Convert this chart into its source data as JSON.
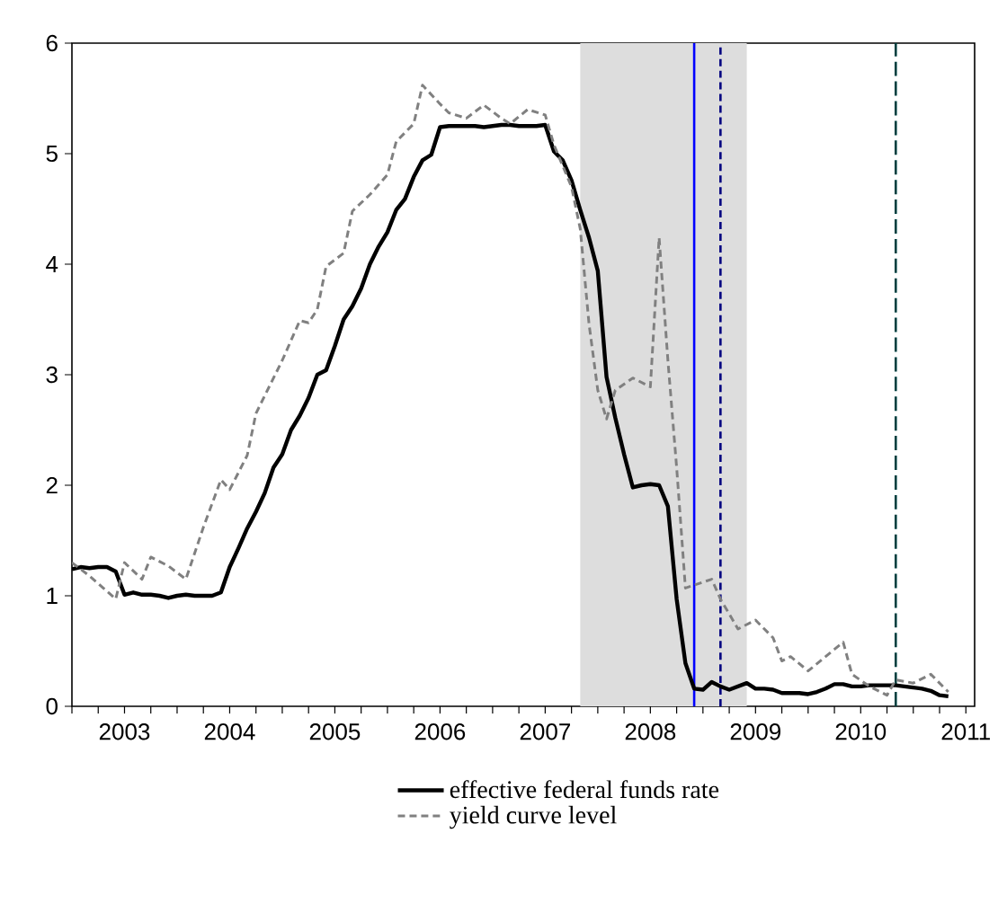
{
  "chart_data": {
    "type": "line",
    "series": [
      {
        "name": "effective federal funds rate",
        "color": "#000000",
        "line_style": "solid",
        "x": [
          "2003-01",
          "2003-02",
          "2003-03",
          "2003-04",
          "2003-05",
          "2003-06",
          "2003-07",
          "2003-08",
          "2003-09",
          "2003-10",
          "2003-11",
          "2003-12",
          "2004-01",
          "2004-02",
          "2004-03",
          "2004-04",
          "2004-05",
          "2004-06",
          "2004-07",
          "2004-08",
          "2004-09",
          "2004-10",
          "2004-11",
          "2004-12",
          "2005-01",
          "2005-02",
          "2005-03",
          "2005-04",
          "2005-05",
          "2005-06",
          "2005-07",
          "2005-08",
          "2005-09",
          "2005-10",
          "2005-11",
          "2005-12",
          "2006-01",
          "2006-02",
          "2006-03",
          "2006-04",
          "2006-05",
          "2006-06",
          "2006-07",
          "2006-08",
          "2006-09",
          "2006-10",
          "2006-11",
          "2006-12",
          "2007-01",
          "2007-02",
          "2007-03",
          "2007-04",
          "2007-05",
          "2007-06",
          "2007-07",
          "2007-08",
          "2007-09",
          "2007-10",
          "2007-11",
          "2007-12",
          "2008-01",
          "2008-02",
          "2008-03",
          "2008-04",
          "2008-05",
          "2008-06",
          "2008-07",
          "2008-08",
          "2008-09",
          "2008-10",
          "2008-11",
          "2008-12",
          "2009-01",
          "2009-02",
          "2009-03",
          "2009-04",
          "2009-05",
          "2009-06",
          "2009-07",
          "2009-08",
          "2009-09",
          "2009-10",
          "2009-11",
          "2009-12",
          "2010-01",
          "2010-02",
          "2010-03",
          "2010-04",
          "2010-05",
          "2010-06",
          "2010-07",
          "2010-08",
          "2010-09",
          "2010-10",
          "2010-11",
          "2010-12",
          "2011-01",
          "2011-02",
          "2011-03",
          "2011-04",
          "2011-05"
        ],
        "values": [
          1.24,
          1.26,
          1.25,
          1.26,
          1.26,
          1.22,
          1.01,
          1.03,
          1.01,
          1.01,
          1.0,
          0.98,
          1.0,
          1.01,
          1.0,
          1.0,
          1.0,
          1.03,
          1.26,
          1.43,
          1.61,
          1.76,
          1.93,
          2.16,
          2.28,
          2.5,
          2.63,
          2.79,
          3.0,
          3.04,
          3.26,
          3.5,
          3.62,
          3.78,
          4.0,
          4.16,
          4.29,
          4.49,
          4.59,
          4.79,
          4.94,
          4.99,
          5.24,
          5.25,
          5.25,
          5.25,
          5.25,
          5.24,
          5.25,
          5.26,
          5.26,
          5.25,
          5.25,
          5.25,
          5.26,
          5.02,
          4.94,
          4.76,
          4.49,
          4.24,
          3.94,
          2.98,
          2.61,
          2.28,
          1.98,
          2.0,
          2.01,
          2.0,
          1.81,
          0.97,
          0.39,
          0.16,
          0.15,
          0.22,
          0.18,
          0.15,
          0.18,
          0.21,
          0.16,
          0.16,
          0.15,
          0.12,
          0.12,
          0.12,
          0.11,
          0.13,
          0.16,
          0.2,
          0.2,
          0.18,
          0.18,
          0.19,
          0.19,
          0.19,
          0.19,
          0.18,
          0.17,
          0.16,
          0.14,
          0.1,
          0.09
        ]
      },
      {
        "name": "yield curve level",
        "color": "#808080",
        "line_style": "dashed",
        "x": [
          "2003-01",
          "2003-03",
          "2003-06",
          "2003-07",
          "2003-09",
          "2003-10",
          "2003-12",
          "2004-02",
          "2004-04",
          "2004-06",
          "2004-07",
          "2004-09",
          "2004-10",
          "2005-01",
          "2005-03",
          "2005-04",
          "2005-05",
          "2005-06",
          "2005-08",
          "2005-09",
          "2005-11",
          "2006-01",
          "2006-02",
          "2006-04",
          "2006-05",
          "2006-07",
          "2006-08",
          "2006-10",
          "2006-12",
          "2007-02",
          "2007-03",
          "2007-05",
          "2007-07",
          "2007-08",
          "2007-10",
          "2007-11",
          "2007-12",
          "2008-01",
          "2008-02",
          "2008-03",
          "2008-05",
          "2008-07",
          "2008-08",
          "2008-09",
          "2008-10",
          "2008-11",
          "2009-02",
          "2009-03",
          "2009-05",
          "2009-07",
          "2009-09",
          "2009-10",
          "2009-11",
          "2010-01",
          "2010-03",
          "2010-05",
          "2010-06",
          "2010-08",
          "2010-10",
          "2010-11",
          "2011-01",
          "2011-03",
          "2011-05"
        ],
        "values": [
          1.3,
          1.18,
          0.97,
          1.3,
          1.15,
          1.35,
          1.27,
          1.15,
          1.62,
          2.05,
          1.96,
          2.27,
          2.65,
          3.13,
          3.49,
          3.47,
          3.59,
          3.98,
          4.1,
          4.48,
          4.63,
          4.81,
          5.11,
          5.27,
          5.62,
          5.45,
          5.37,
          5.32,
          5.44,
          5.32,
          5.27,
          5.4,
          5.35,
          5.08,
          4.7,
          4.32,
          3.46,
          2.86,
          2.6,
          2.86,
          2.97,
          2.89,
          4.24,
          3.13,
          2.16,
          1.07,
          1.15,
          0.97,
          0.7,
          0.78,
          0.62,
          0.41,
          0.45,
          0.32,
          0.45,
          0.58,
          0.29,
          0.18,
          0.1,
          0.24,
          0.21,
          0.29,
          0.13
        ]
      }
    ],
    "xlim": [
      "2003-01",
      "2011-08"
    ],
    "xticks": [
      {
        "value": "2003-01",
        "label": null
      },
      {
        "value": "2003-04",
        "label": null
      },
      {
        "value": "2003-07",
        "label": "2003"
      },
      {
        "value": "2003-10",
        "label": null
      },
      {
        "value": "2004-01",
        "label": null
      },
      {
        "value": "2004-04",
        "label": null
      },
      {
        "value": "2004-07",
        "label": "2004"
      },
      {
        "value": "2004-10",
        "label": null
      },
      {
        "value": "2005-01",
        "label": null
      },
      {
        "value": "2005-04",
        "label": null
      },
      {
        "value": "2005-07",
        "label": "2005"
      },
      {
        "value": "2005-10",
        "label": null
      },
      {
        "value": "2006-01",
        "label": null
      },
      {
        "value": "2006-04",
        "label": null
      },
      {
        "value": "2006-07",
        "label": "2006"
      },
      {
        "value": "2006-10",
        "label": null
      },
      {
        "value": "2007-01",
        "label": null
      },
      {
        "value": "2007-04",
        "label": null
      },
      {
        "value": "2007-07",
        "label": "2007"
      },
      {
        "value": "2007-10",
        "label": null
      },
      {
        "value": "2008-01",
        "label": null
      },
      {
        "value": "2008-04",
        "label": null
      },
      {
        "value": "2008-07",
        "label": "2008"
      },
      {
        "value": "2008-10",
        "label": null
      },
      {
        "value": "2009-01",
        "label": null
      },
      {
        "value": "2009-04",
        "label": null
      },
      {
        "value": "2009-07",
        "label": "2009"
      },
      {
        "value": "2009-10",
        "label": null
      },
      {
        "value": "2010-01",
        "label": null
      },
      {
        "value": "2010-04",
        "label": null
      },
      {
        "value": "2010-07",
        "label": "2010"
      },
      {
        "value": "2010-10",
        "label": null
      },
      {
        "value": "2011-01",
        "label": null
      },
      {
        "value": "2011-04",
        "label": null
      },
      {
        "value": "2011-07",
        "label": "2011"
      }
    ],
    "ylim": [
      0,
      6
    ],
    "yticks": [
      0,
      1,
      2,
      3,
      4,
      5,
      6
    ],
    "bands": [
      {
        "axis": "x",
        "from": "2007-11",
        "to": "2009-06",
        "color": "#dddddd"
      }
    ],
    "ref_lines": [
      {
        "axis": "x",
        "value": "2008-12",
        "color": "#0000ff",
        "line_style": "solid"
      },
      {
        "axis": "x",
        "value": "2009-03",
        "color": "#000080",
        "line_style": "dashed"
      },
      {
        "axis": "x",
        "value": "2010-11",
        "color": "#004040",
        "line_style": "longdashed"
      }
    ],
    "grid": false,
    "legend": "bottom"
  }
}
